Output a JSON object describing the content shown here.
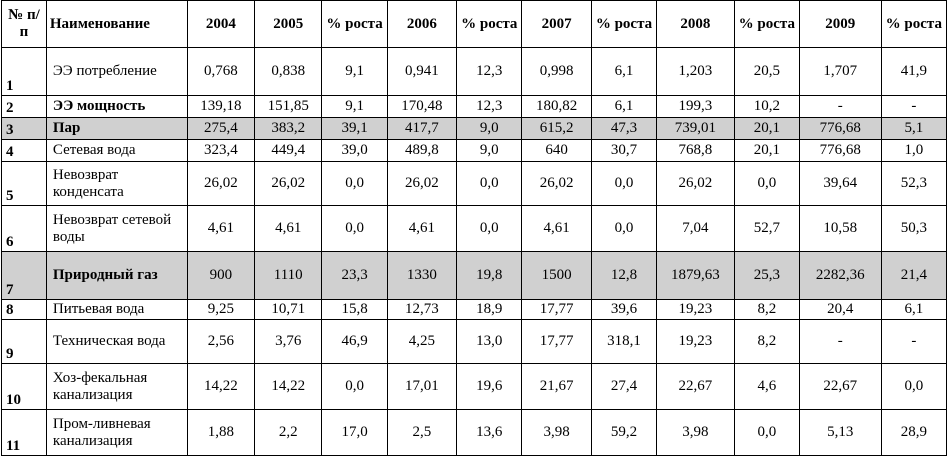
{
  "table": {
    "headers": [
      "№ п/п",
      "Наименование",
      "2004",
      "2005",
      "% роста",
      "2006",
      "% роста",
      "2007",
      "% роста",
      "2008",
      "% роста",
      "2009",
      "% роста"
    ],
    "rows": [
      {
        "num": "1",
        "name": "ЭЭ потребление",
        "values": [
          "0,768",
          "0,838",
          "9,1",
          "0,941",
          "12,3",
          "0,998",
          "6,1",
          "1,203",
          "20,5",
          "1,707",
          "41,9"
        ]
      },
      {
        "num": "2",
        "name": "ЭЭ мощность",
        "values": [
          "139,18",
          "151,85",
          "9,1",
          "170,48",
          "12,3",
          "180,82",
          "6,1",
          "199,3",
          "10,2",
          "-",
          "-"
        ]
      },
      {
        "num": "3",
        "name": "Пар",
        "values": [
          "275,4",
          "383,2",
          "39,1",
          "417,7",
          "9,0",
          "615,2",
          "47,3",
          "739,01",
          "20,1",
          "776,68",
          "5,1"
        ]
      },
      {
        "num": "4",
        "name": "Сетевая вода",
        "values": [
          "323,4",
          "449,4",
          "39,0",
          "489,8",
          "9,0",
          "640",
          "30,7",
          "768,8",
          "20,1",
          "776,68",
          "1,0"
        ]
      },
      {
        "num": "5",
        "name": "Невозврат конденсата",
        "values": [
          "26,02",
          "26,02",
          "0,0",
          "26,02",
          "0,0",
          "26,02",
          "0,0",
          "26,02",
          "0,0",
          "39,64",
          "52,3"
        ]
      },
      {
        "num": "6",
        "name": "Невозврат сетевой воды",
        "values": [
          "4,61",
          "4,61",
          "0,0",
          "4,61",
          "0,0",
          "4,61",
          "0,0",
          "7,04",
          "52,7",
          "10,58",
          "50,3"
        ]
      },
      {
        "num": "7",
        "name": "Природный газ",
        "values": [
          "900",
          "1110",
          "23,3",
          "1330",
          "19,8",
          "1500",
          "12,8",
          "1879,63",
          "25,3",
          "2282,36",
          "21,4"
        ]
      },
      {
        "num": "8",
        "name": "Питьевая вода",
        "values": [
          "9,25",
          "10,71",
          "15,8",
          "12,73",
          "18,9",
          "17,77",
          "39,6",
          "19,23",
          "8,2",
          "20,4",
          "6,1"
        ]
      },
      {
        "num": "9",
        "name": "Техническая вода",
        "values": [
          "2,56",
          "3,76",
          "46,9",
          "4,25",
          "13,0",
          "17,77",
          "318,1",
          "19,23",
          "8,2",
          "-",
          "-"
        ]
      },
      {
        "num": "10",
        "name": "Хоз-фекальная канализация",
        "values": [
          "14,22",
          "14,22",
          "0,0",
          "17,01",
          "19,6",
          "21,67",
          "27,4",
          "22,67",
          "4,6",
          "22,67",
          "0,0"
        ]
      },
      {
        "num": "11",
        "name": "Пром-ливневая канализация",
        "values": [
          "1,88",
          "2,2",
          "17,0",
          "2,5",
          "13,6",
          "3,98",
          "59,2",
          "3,98",
          "0,0",
          "5,13",
          "28,9"
        ]
      }
    ]
  }
}
